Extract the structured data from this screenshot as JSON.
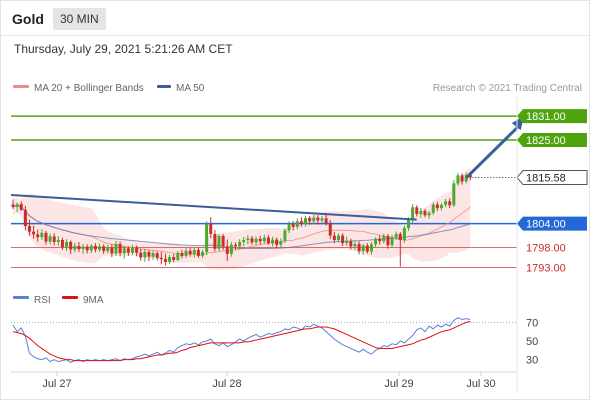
{
  "header": {
    "symbol": "Gold",
    "timeframe": "30 MIN"
  },
  "datetime": "Thursday, July 29, 2021 5:21:26 AM CET",
  "legend": {
    "bb_label": "MA 20 + Bollinger Bands",
    "ma50_label": "MA 50",
    "copyright": "Research © 2021 Trading Central"
  },
  "colors": {
    "resistance": "#4fa40e",
    "pivot": "#2468d8",
    "support": "#e06a6a",
    "trend": "#3b5e9a",
    "bull_candle": "#4aaa2a",
    "bear_candle": "#cc2b2b",
    "bollinger_fill": "#fbdcdc",
    "ma20": "#f08a8a",
    "ma50": "#5a6fa8",
    "rsi": "#5b7fd6",
    "rsi_ma": "#e01010"
  },
  "chart_data": [
    {
      "type": "candlestick",
      "y_range": [
        1789.6,
        1835.8
      ],
      "levels": [
        {
          "value": 1831.0,
          "label": "1831.00",
          "kind": "resistance"
        },
        {
          "value": 1825.0,
          "label": "1825.00",
          "kind": "resistance"
        },
        {
          "value": 1815.58,
          "label": "1815.58",
          "kind": "last"
        },
        {
          "value": 1804.0,
          "label": "1804.00",
          "kind": "pivot"
        },
        {
          "value": 1798.0,
          "label": "1798.00",
          "kind": "support"
        },
        {
          "value": 1793.0,
          "label": "1793.00",
          "kind": "support"
        }
      ],
      "x_labels": [
        "Jul 27",
        "Jul 28",
        "Jul 29",
        "Jul 30"
      ],
      "trendline": {
        "from": {
          "bar": 0,
          "price": 1811.2
        },
        "to": {
          "bar": 97,
          "price": 1805.0
        }
      },
      "scenario_arrow": {
        "from": {
          "bar": 110,
          "price": 1815.5
        },
        "to": {
          "bar": 123,
          "price": 1831.0
        }
      },
      "candles": [
        {
          "o": 1808.8,
          "h": 1810.1,
          "l": 1807.7,
          "c": 1808.2
        },
        {
          "o": 1808.2,
          "h": 1809.3,
          "l": 1806.9,
          "c": 1808.9
        },
        {
          "o": 1808.9,
          "h": 1809.6,
          "l": 1807.2,
          "c": 1807.5
        },
        {
          "o": 1807.5,
          "h": 1808.5,
          "l": 1802.3,
          "c": 1803.4
        },
        {
          "o": 1803.4,
          "h": 1805.0,
          "l": 1801.0,
          "c": 1802.0
        },
        {
          "o": 1802.0,
          "h": 1803.5,
          "l": 1800.2,
          "c": 1801.3
        },
        {
          "o": 1801.3,
          "h": 1802.5,
          "l": 1799.5,
          "c": 1800.6
        },
        {
          "o": 1800.6,
          "h": 1802.6,
          "l": 1799.9,
          "c": 1801.7
        },
        {
          "o": 1801.7,
          "h": 1802.2,
          "l": 1798.7,
          "c": 1799.5
        },
        {
          "o": 1799.5,
          "h": 1801.5,
          "l": 1798.8,
          "c": 1800.8
        },
        {
          "o": 1800.8,
          "h": 1801.6,
          "l": 1798.6,
          "c": 1799.4
        },
        {
          "o": 1799.4,
          "h": 1800.9,
          "l": 1798.4,
          "c": 1799.9
        },
        {
          "o": 1799.9,
          "h": 1800.5,
          "l": 1797.4,
          "c": 1798.1
        },
        {
          "o": 1798.1,
          "h": 1800.1,
          "l": 1797.1,
          "c": 1799.4
        },
        {
          "o": 1799.4,
          "h": 1799.8,
          "l": 1796.4,
          "c": 1797.5
        },
        {
          "o": 1797.5,
          "h": 1799.2,
          "l": 1796.8,
          "c": 1798.4
        },
        {
          "o": 1798.4,
          "h": 1799.4,
          "l": 1796.9,
          "c": 1797.6
        },
        {
          "o": 1797.6,
          "h": 1798.9,
          "l": 1796.4,
          "c": 1798.2
        },
        {
          "o": 1798.2,
          "h": 1798.8,
          "l": 1796.5,
          "c": 1797.3
        },
        {
          "o": 1797.3,
          "h": 1798.9,
          "l": 1796.6,
          "c": 1798.4
        },
        {
          "o": 1798.4,
          "h": 1799.1,
          "l": 1796.8,
          "c": 1797.5
        },
        {
          "o": 1797.5,
          "h": 1799.0,
          "l": 1796.9,
          "c": 1798.3
        },
        {
          "o": 1798.3,
          "h": 1798.8,
          "l": 1796.4,
          "c": 1797.1
        },
        {
          "o": 1797.1,
          "h": 1798.7,
          "l": 1796.6,
          "c": 1798.0
        },
        {
          "o": 1798.0,
          "h": 1798.8,
          "l": 1795.6,
          "c": 1796.5
        },
        {
          "o": 1796.5,
          "h": 1799.6,
          "l": 1795.9,
          "c": 1798.9
        },
        {
          "o": 1798.9,
          "h": 1799.5,
          "l": 1795.8,
          "c": 1796.6
        },
        {
          "o": 1796.6,
          "h": 1798.5,
          "l": 1795.2,
          "c": 1797.8
        },
        {
          "o": 1797.8,
          "h": 1798.3,
          "l": 1795.9,
          "c": 1796.7
        },
        {
          "o": 1796.7,
          "h": 1798.7,
          "l": 1796.2,
          "c": 1798.0
        },
        {
          "o": 1798.0,
          "h": 1798.5,
          "l": 1795.8,
          "c": 1796.7
        },
        {
          "o": 1796.7,
          "h": 1797.7,
          "l": 1794.7,
          "c": 1795.5
        },
        {
          "o": 1795.5,
          "h": 1797.7,
          "l": 1794.4,
          "c": 1796.9
        },
        {
          "o": 1796.9,
          "h": 1797.4,
          "l": 1794.6,
          "c": 1795.7
        },
        {
          "o": 1795.7,
          "h": 1797.2,
          "l": 1794.9,
          "c": 1796.6
        },
        {
          "o": 1796.6,
          "h": 1797.1,
          "l": 1794.7,
          "c": 1795.4
        },
        {
          "o": 1795.4,
          "h": 1796.9,
          "l": 1793.8,
          "c": 1795.1
        },
        {
          "o": 1795.1,
          "h": 1796.5,
          "l": 1793.5,
          "c": 1794.4
        },
        {
          "o": 1794.4,
          "h": 1796.2,
          "l": 1793.9,
          "c": 1795.6
        },
        {
          "o": 1795.6,
          "h": 1796.4,
          "l": 1794.3,
          "c": 1794.9
        },
        {
          "o": 1794.9,
          "h": 1797.1,
          "l": 1794.6,
          "c": 1796.6
        },
        {
          "o": 1796.6,
          "h": 1797.4,
          "l": 1795.3,
          "c": 1795.9
        },
        {
          "o": 1795.9,
          "h": 1797.9,
          "l": 1795.4,
          "c": 1797.2
        },
        {
          "o": 1797.2,
          "h": 1797.9,
          "l": 1795.7,
          "c": 1796.3
        },
        {
          "o": 1796.3,
          "h": 1797.9,
          "l": 1795.5,
          "c": 1797.4
        },
        {
          "o": 1797.4,
          "h": 1798.0,
          "l": 1795.4,
          "c": 1795.9
        },
        {
          "o": 1795.9,
          "h": 1797.4,
          "l": 1795.4,
          "c": 1796.9
        },
        {
          "o": 1796.9,
          "h": 1804.6,
          "l": 1796.1,
          "c": 1803.9
        },
        {
          "o": 1803.9,
          "h": 1805.6,
          "l": 1800.4,
          "c": 1801.4
        },
        {
          "o": 1801.4,
          "h": 1802.4,
          "l": 1797.0,
          "c": 1797.7
        },
        {
          "o": 1797.7,
          "h": 1801.3,
          "l": 1797.1,
          "c": 1800.9
        },
        {
          "o": 1800.9,
          "h": 1801.4,
          "l": 1797.4,
          "c": 1798.3
        },
        {
          "o": 1798.3,
          "h": 1800.0,
          "l": 1794.6,
          "c": 1796.4
        },
        {
          "o": 1796.4,
          "h": 1799.4,
          "l": 1795.7,
          "c": 1798.7
        },
        {
          "o": 1798.7,
          "h": 1799.3,
          "l": 1797.5,
          "c": 1798.3
        },
        {
          "o": 1798.3,
          "h": 1800.1,
          "l": 1797.6,
          "c": 1799.4
        },
        {
          "o": 1799.4,
          "h": 1800.7,
          "l": 1798.3,
          "c": 1799.9
        },
        {
          "o": 1799.9,
          "h": 1801.1,
          "l": 1798.8,
          "c": 1800.3
        },
        {
          "o": 1800.3,
          "h": 1800.9,
          "l": 1798.7,
          "c": 1799.3
        },
        {
          "o": 1799.3,
          "h": 1800.8,
          "l": 1798.5,
          "c": 1800.2
        },
        {
          "o": 1800.2,
          "h": 1800.9,
          "l": 1798.8,
          "c": 1799.6
        },
        {
          "o": 1799.6,
          "h": 1801.2,
          "l": 1799.0,
          "c": 1800.5
        },
        {
          "o": 1800.5,
          "h": 1801.1,
          "l": 1798.7,
          "c": 1799.1
        },
        {
          "o": 1799.1,
          "h": 1800.7,
          "l": 1798.3,
          "c": 1800.0
        },
        {
          "o": 1800.0,
          "h": 1800.5,
          "l": 1798.0,
          "c": 1798.7
        },
        {
          "o": 1798.7,
          "h": 1800.3,
          "l": 1798.0,
          "c": 1799.6
        },
        {
          "o": 1799.6,
          "h": 1802.8,
          "l": 1799.1,
          "c": 1802.3
        },
        {
          "o": 1802.3,
          "h": 1804.6,
          "l": 1801.6,
          "c": 1803.9
        },
        {
          "o": 1803.9,
          "h": 1804.7,
          "l": 1802.3,
          "c": 1803.2
        },
        {
          "o": 1803.2,
          "h": 1805.3,
          "l": 1802.6,
          "c": 1804.6
        },
        {
          "o": 1804.6,
          "h": 1805.6,
          "l": 1803.2,
          "c": 1803.9
        },
        {
          "o": 1803.9,
          "h": 1806.0,
          "l": 1803.3,
          "c": 1805.4
        },
        {
          "o": 1805.4,
          "h": 1805.9,
          "l": 1803.7,
          "c": 1804.6
        },
        {
          "o": 1804.6,
          "h": 1806.2,
          "l": 1803.9,
          "c": 1805.5
        },
        {
          "o": 1805.5,
          "h": 1806.1,
          "l": 1803.8,
          "c": 1804.8
        },
        {
          "o": 1804.8,
          "h": 1805.9,
          "l": 1804.0,
          "c": 1805.3
        },
        {
          "o": 1805.3,
          "h": 1806.4,
          "l": 1803.5,
          "c": 1804.1
        },
        {
          "o": 1804.1,
          "h": 1804.9,
          "l": 1800.1,
          "c": 1801.0
        },
        {
          "o": 1801.0,
          "h": 1801.9,
          "l": 1799.1,
          "c": 1799.9
        },
        {
          "o": 1799.9,
          "h": 1801.6,
          "l": 1799.3,
          "c": 1801.0
        },
        {
          "o": 1801.0,
          "h": 1801.6,
          "l": 1798.4,
          "c": 1799.1
        },
        {
          "o": 1799.1,
          "h": 1800.7,
          "l": 1798.5,
          "c": 1799.6
        },
        {
          "o": 1799.6,
          "h": 1800.2,
          "l": 1797.5,
          "c": 1798.3
        },
        {
          "o": 1798.3,
          "h": 1799.8,
          "l": 1797.4,
          "c": 1798.9
        },
        {
          "o": 1798.9,
          "h": 1799.6,
          "l": 1796.3,
          "c": 1797.1
        },
        {
          "o": 1797.1,
          "h": 1798.9,
          "l": 1796.1,
          "c": 1798.5
        },
        {
          "o": 1798.5,
          "h": 1799.1,
          "l": 1796.5,
          "c": 1797.0
        },
        {
          "o": 1797.0,
          "h": 1799.4,
          "l": 1796.2,
          "c": 1798.8
        },
        {
          "o": 1798.8,
          "h": 1800.6,
          "l": 1798.1,
          "c": 1800.2
        },
        {
          "o": 1800.2,
          "h": 1801.1,
          "l": 1798.7,
          "c": 1799.6
        },
        {
          "o": 1799.6,
          "h": 1801.5,
          "l": 1799.0,
          "c": 1800.9
        },
        {
          "o": 1800.9,
          "h": 1801.4,
          "l": 1797.7,
          "c": 1798.6
        },
        {
          "o": 1798.6,
          "h": 1801.2,
          "l": 1798.0,
          "c": 1800.6
        },
        {
          "o": 1800.6,
          "h": 1802.0,
          "l": 1799.9,
          "c": 1801.4
        },
        {
          "o": 1801.4,
          "h": 1801.9,
          "l": 1793.2,
          "c": 1799.9
        },
        {
          "o": 1799.9,
          "h": 1803.5,
          "l": 1799.2,
          "c": 1802.9
        },
        {
          "o": 1802.9,
          "h": 1805.6,
          "l": 1802.2,
          "c": 1804.9
        },
        {
          "o": 1804.9,
          "h": 1808.9,
          "l": 1804.1,
          "c": 1808.1
        },
        {
          "o": 1808.1,
          "h": 1808.6,
          "l": 1805.8,
          "c": 1806.4
        },
        {
          "o": 1806.4,
          "h": 1807.9,
          "l": 1805.5,
          "c": 1807.2
        },
        {
          "o": 1807.2,
          "h": 1807.7,
          "l": 1805.6,
          "c": 1806.1
        },
        {
          "o": 1806.1,
          "h": 1807.2,
          "l": 1805.3,
          "c": 1806.7
        },
        {
          "o": 1806.7,
          "h": 1809.3,
          "l": 1806.2,
          "c": 1808.8
        },
        {
          "o": 1808.8,
          "h": 1809.5,
          "l": 1807.2,
          "c": 1807.9
        },
        {
          "o": 1807.9,
          "h": 1809.2,
          "l": 1807.3,
          "c": 1808.7
        },
        {
          "o": 1808.7,
          "h": 1810.2,
          "l": 1808.1,
          "c": 1809.6
        },
        {
          "o": 1809.6,
          "h": 1810.3,
          "l": 1807.9,
          "c": 1808.6
        },
        {
          "o": 1808.6,
          "h": 1814.9,
          "l": 1808.2,
          "c": 1814.1
        },
        {
          "o": 1814.1,
          "h": 1816.7,
          "l": 1813.5,
          "c": 1816.1
        },
        {
          "o": 1816.1,
          "h": 1816.6,
          "l": 1813.8,
          "c": 1814.6
        },
        {
          "o": 1814.6,
          "h": 1816.8,
          "l": 1814.1,
          "c": 1816.2
        },
        {
          "o": 1816.2,
          "h": 1816.7,
          "l": 1814.9,
          "c": 1815.58
        }
      ]
    },
    {
      "type": "line",
      "title": "",
      "y_range": [
        20,
        80
      ],
      "y_ticks": [
        70,
        50,
        30
      ],
      "series": [
        {
          "name": "RSI",
          "values": [
            67,
            60,
            64,
            55,
            37,
            33,
            31,
            30,
            32,
            28,
            30,
            28,
            29,
            30,
            27,
            29,
            30,
            28,
            30,
            29,
            30,
            29,
            30,
            29,
            30,
            31,
            29,
            31,
            30,
            31,
            33,
            34,
            36,
            34,
            36,
            38,
            35,
            37,
            40,
            38,
            43,
            45,
            47,
            46,
            48,
            46,
            49,
            50,
            52,
            47,
            45,
            48,
            44,
            46,
            49,
            52,
            50,
            53,
            55,
            57,
            54,
            56,
            58,
            57,
            59,
            60,
            63,
            62,
            65,
            64,
            62,
            66,
            65,
            68,
            66,
            64,
            60,
            56,
            52,
            49,
            46,
            44,
            42,
            40,
            38,
            41,
            38,
            36,
            40,
            42,
            45,
            44,
            47,
            46,
            50,
            48,
            52,
            56,
            62,
            64,
            60,
            66,
            63,
            67,
            65,
            68,
            66,
            72,
            75,
            73,
            74,
            73
          ]
        },
        {
          "name": "9MA",
          "values": [
            60,
            59,
            58,
            56,
            53,
            49,
            45,
            42,
            39,
            36,
            34,
            32,
            31,
            30,
            30,
            29,
            29,
            29,
            29,
            29,
            29,
            29,
            29,
            29,
            29,
            29,
            29,
            30,
            30,
            30,
            31,
            31,
            32,
            33,
            34,
            35,
            35,
            36,
            37,
            37,
            38,
            40,
            41,
            43,
            44,
            45,
            46,
            47,
            48,
            48,
            48,
            48,
            48,
            48,
            48,
            48,
            49,
            49,
            50,
            51,
            52,
            53,
            54,
            55,
            56,
            57,
            58,
            59,
            60,
            61,
            62,
            63,
            63,
            64,
            65,
            65,
            65,
            64,
            63,
            61,
            59,
            57,
            55,
            53,
            51,
            49,
            47,
            45,
            43,
            42,
            42,
            42,
            42,
            43,
            44,
            45,
            46,
            47,
            49,
            51,
            52,
            54,
            56,
            58,
            60,
            61,
            62,
            64,
            66,
            68,
            70,
            71
          ]
        }
      ],
      "threshold": 70
    }
  ]
}
